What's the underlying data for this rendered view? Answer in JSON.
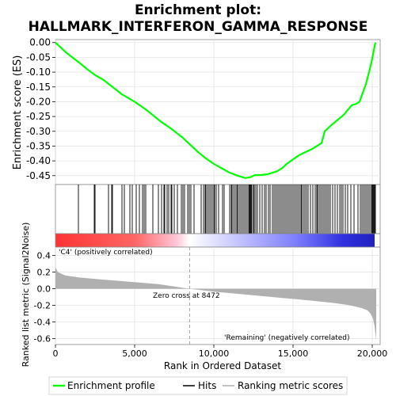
{
  "chart_data": {
    "type": "line",
    "title_line1": "Enrichment plot:",
    "title_line2": "HALLMARK_INTERFERON_GAMMA_RESPONSE",
    "xlabel": "Rank in Ordered Dataset",
    "ylabel_top": "Enrichment score (ES)",
    "ylabel_bottom": "Ranked list metric (Signal2Noise)",
    "xlim": [
      0,
      20500
    ],
    "es_ylim": [
      -0.48,
      0.01
    ],
    "metric_ylim": [
      -0.67,
      0.5
    ],
    "x_ticks": [
      0,
      5000,
      10000,
      15000,
      20000
    ],
    "x_tick_labels": [
      "0",
      "5,000",
      "10,000",
      "15,000",
      "20,000"
    ],
    "es_ticks": [
      0.0,
      -0.05,
      -0.1,
      -0.15,
      -0.2,
      -0.25,
      -0.3,
      -0.35,
      -0.4,
      -0.45
    ],
    "es_tick_labels": [
      "0.00",
      "-0.05",
      "-0.10",
      "-0.15",
      "-0.20",
      "-0.25",
      "-0.30",
      "-0.35",
      "-0.40",
      "-0.45"
    ],
    "metric_ticks": [
      0.4,
      0.2,
      0.0,
      -0.2,
      -0.4,
      -0.6
    ],
    "metric_tick_labels": [
      "0.4",
      "0.2",
      "0.0",
      "-0.2",
      "-0.4",
      "-0.6"
    ],
    "zero_cross_rank": 8472,
    "zero_cross_label": "Zero cross at 8472",
    "positive_label": "'C4' (positively correlated)",
    "negative_label": "'Remaining' (negatively correlated)",
    "n_genes": 20300,
    "enrichment_profile": {
      "x": [
        0,
        700,
        1500,
        2000,
        2500,
        3000,
        3600,
        4200,
        5000,
        5800,
        6600,
        7400,
        8000,
        8500,
        9000,
        9500,
        10000,
        10500,
        11000,
        11500,
        12000,
        12300,
        12600,
        13000,
        13400,
        13700,
        14000,
        14300,
        14600,
        15000,
        15400,
        15800,
        16200,
        16500,
        16800,
        17000,
        17400,
        17800,
        18200,
        18500,
        18700,
        19000,
        19200,
        19400,
        19600,
        19800,
        20000,
        20100,
        20200
      ],
      "y": [
        0.0,
        -0.035,
        -0.068,
        -0.09,
        -0.11,
        -0.125,
        -0.15,
        -0.175,
        -0.2,
        -0.23,
        -0.265,
        -0.295,
        -0.32,
        -0.345,
        -0.37,
        -0.392,
        -0.41,
        -0.425,
        -0.44,
        -0.45,
        -0.458,
        -0.455,
        -0.448,
        -0.448,
        -0.445,
        -0.44,
        -0.435,
        -0.425,
        -0.41,
        -0.395,
        -0.38,
        -0.37,
        -0.36,
        -0.35,
        -0.34,
        -0.3,
        -0.28,
        -0.262,
        -0.245,
        -0.225,
        -0.212,
        -0.207,
        -0.2,
        -0.17,
        -0.14,
        -0.1,
        -0.055,
        -0.025,
        0.0
      ]
    },
    "metric_profile": {
      "x": [
        0,
        150,
        600,
        1500,
        3000,
        5000,
        6500,
        8472,
        10000,
        12000,
        14000,
        16000,
        17500,
        18500,
        19300,
        19700,
        19900,
        20050,
        20150,
        20250
      ],
      "y": [
        0.26,
        0.2,
        0.16,
        0.135,
        0.11,
        0.08,
        0.055,
        0.0,
        -0.035,
        -0.07,
        -0.105,
        -0.14,
        -0.17,
        -0.195,
        -0.23,
        -0.26,
        -0.3,
        -0.36,
        -0.45,
        -0.62
      ]
    },
    "hits_ranks": [
      1450,
      2450,
      2500,
      3350,
      3550,
      3600,
      4200,
      4350,
      4700,
      4850,
      5100,
      5300,
      5500,
      5600,
      5700,
      6150,
      6500,
      6700,
      6850,
      6900,
      7050,
      7150,
      7300,
      7350,
      7500,
      7700,
      7950,
      8050,
      8150,
      8350,
      8450,
      8550,
      8750,
      9200,
      9350,
      9450,
      9500,
      9600,
      9700,
      9800,
      9900,
      10000,
      10050,
      10150,
      10300,
      10550,
      10650,
      11000,
      11100,
      11150,
      11250,
      11350,
      11450,
      11500,
      11600,
      11700,
      11800,
      11900,
      12000,
      12100,
      12200,
      12250,
      12300,
      12350,
      12400,
      12500,
      12550,
      12650,
      12750,
      12900,
      13050,
      13200,
      13300,
      13450,
      13550,
      13700,
      13800,
      13900,
      14000,
      14100,
      14200,
      14300,
      14400,
      14500,
      14600,
      14700,
      14800,
      14900,
      15000,
      15100,
      15200,
      15300,
      15400,
      15500,
      15550,
      15650,
      15750,
      15850,
      15950,
      16100,
      16250,
      16400,
      16500,
      16550,
      16650,
      16750,
      16850,
      16950,
      17050,
      17150,
      17250,
      17350,
      17500,
      17650,
      17800,
      17950,
      18050,
      18150,
      18300,
      18450,
      18650,
      18850,
      19100,
      19250,
      19350,
      19450,
      19550,
      19650,
      19750,
      19850,
      19950,
      20000,
      20050,
      20100,
      20150,
      20200
    ],
    "legend": [
      "Enrichment profile",
      "Hits",
      "Ranking metric scores"
    ],
    "colors": {
      "enrichment_line": "#00ff00",
      "hits": "#000000",
      "metric_fill": "#b0b0b0",
      "zero_cross_line": "#a0a0a0",
      "positive_label": "#ff0000",
      "negative_label": "#0000ff",
      "grid": "#e4e4e4",
      "bar_pos": "#ff0000",
      "bar_mid": "#ffffff",
      "bar_neg": "#0000ff"
    }
  }
}
